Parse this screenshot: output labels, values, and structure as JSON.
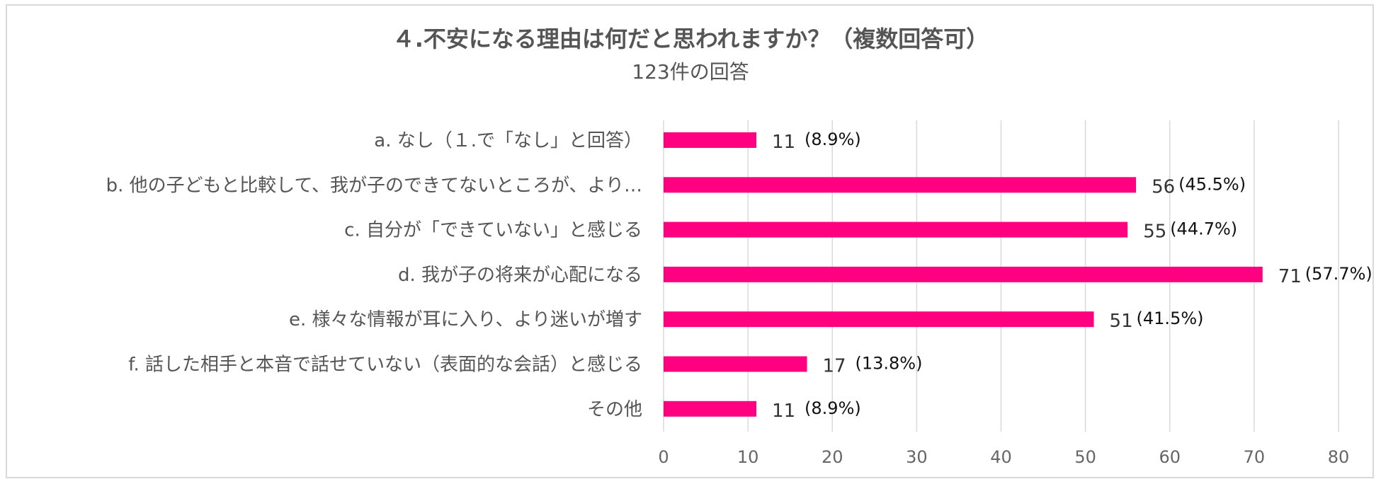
{
  "chart_data": {
    "type": "bar",
    "orientation": "horizontal",
    "title": "４.不安になる理由は何だと思われますか？（複数回答可）",
    "subtitle": "123件の回答",
    "categories": [
      "a. なし（１.で「なし」と回答）",
      "b. 他の子どもと比較して、我が子のできてないところが、より…",
      "c. 自分が「できていない」と感じる",
      "d. 我が子の将来が心配になる",
      "e. 様々な情報が耳に入り、より迷いが増す",
      "f.  話した相手と本音で話せていない（表面的な会話）と感じる",
      "その他"
    ],
    "values": [
      11,
      56,
      55,
      71,
      51,
      17,
      11
    ],
    "percent_labels": [
      "(8.9%)",
      "(45.5%)",
      "(44.7%)",
      "(57.7%)",
      "(41.5%)",
      "(13.8%)",
      "(8.9%)"
    ],
    "xlim": [
      0,
      80
    ],
    "xticks": [
      0,
      10,
      20,
      30,
      40,
      50,
      60,
      70,
      80
    ],
    "grid": true,
    "bar_color": "#ff0080",
    "grid_color": "#d9d9d9"
  }
}
